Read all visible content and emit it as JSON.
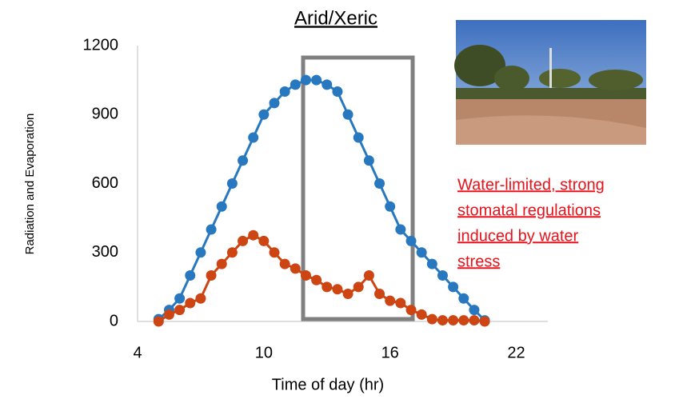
{
  "chart_data": {
    "type": "line",
    "title": "Arid/Xeric",
    "x_label": "Time of day (hr)",
    "y_label": "Radiation and Evaporation",
    "x": [
      5,
      5.5,
      6,
      6.5,
      7,
      7.5,
      8,
      8.5,
      9,
      9.5,
      10,
      10.5,
      11,
      11.5,
      12,
      12.5,
      13,
      13.5,
      14,
      14.5,
      15,
      15.5,
      16,
      16.5,
      17,
      17.5,
      18,
      18.5,
      19,
      19.5,
      20,
      20.5
    ],
    "series": [
      {
        "color": "#2878c0",
        "values": [
          10,
          50,
          100,
          200,
          300,
          400,
          500,
          600,
          700,
          800,
          900,
          950,
          1000,
          1030,
          1050,
          1050,
          1030,
          1000,
          900,
          800,
          700,
          600,
          500,
          400,
          350,
          300,
          250,
          200,
          150,
          100,
          50,
          5
        ]
      },
      {
        "color": "#cc4512",
        "values": [
          0,
          30,
          50,
          80,
          100,
          200,
          250,
          300,
          350,
          375,
          350,
          300,
          250,
          230,
          200,
          180,
          150,
          140,
          120,
          150,
          200,
          120,
          90,
          80,
          50,
          30,
          10,
          5,
          5,
          5,
          5,
          0
        ]
      }
    ],
    "xlim": [
      4,
      23.5
    ],
    "xticks": [
      4,
      10,
      16,
      22
    ],
    "ylim": [
      0,
      1200
    ],
    "yticks": [
      0,
      300,
      600,
      900,
      1200
    ],
    "annotation": [
      "Water-limited, strong",
      "stomatal regulations",
      "induced by water",
      "stress"
    ],
    "annotation_color": "#e8121b"
  }
}
